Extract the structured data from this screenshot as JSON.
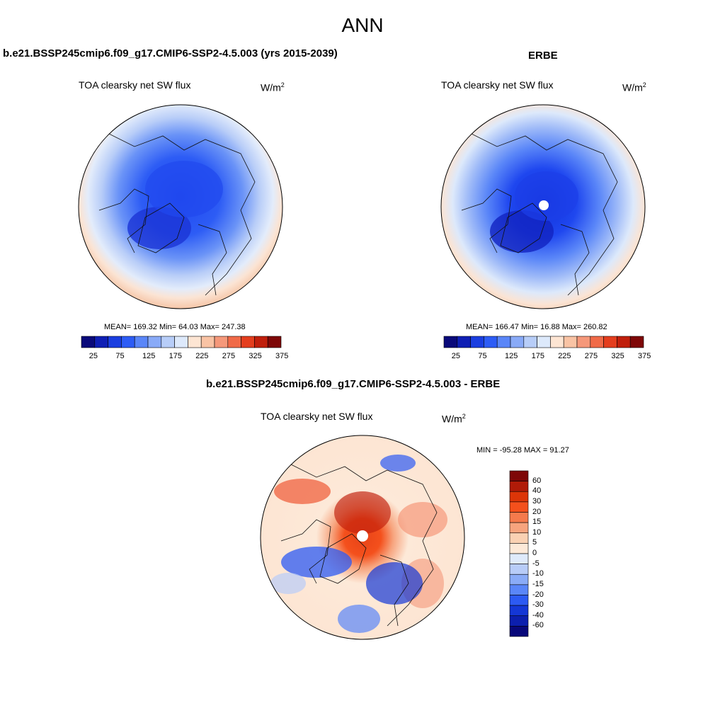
{
  "page": {
    "title": "ANN"
  },
  "panels": [
    {
      "id": "model",
      "title": "b.e21.BSSP245cmip6.f09_g17.CMIP6-SSP2-4.5.003 (yrs 2015-2039)",
      "variable": "TOA clearsky net SW flux",
      "units_base": "W/m",
      "units_exp": "2",
      "stats": "MEAN= 169.32  Min=  64.03  Max= 247.38"
    },
    {
      "id": "obs",
      "title": "ERBE",
      "variable": "TOA clearsky net SW flux",
      "units_base": "W/m",
      "units_exp": "2",
      "stats": "MEAN= 166.47  Min=  16.88  Max= 260.82"
    },
    {
      "id": "diff",
      "title": "b.e21.BSSP245cmip6.f09_g17.CMIP6-SSP2-4.5.003 - ERBE",
      "variable": "TOA clearsky net SW flux",
      "units_base": "W/m",
      "units_exp": "2",
      "stats": "MIN = -95.28 MAX =  91.27"
    }
  ],
  "colorbars": {
    "absolute": {
      "colors": [
        "#0a0a7a",
        "#0f1fb4",
        "#1a3ee0",
        "#2d5cf5",
        "#5a86f8",
        "#89aaf7",
        "#b7cdf8",
        "#dde9fb",
        "#fde5d3",
        "#f9c3a4",
        "#f5987a",
        "#f06a48",
        "#e43e1e",
        "#c01f0c",
        "#7e0707"
      ],
      "labels": [
        "25",
        "75",
        "125",
        "175",
        "225",
        "275",
        "325",
        "375"
      ]
    },
    "difference": {
      "colors": [
        "#7e0707",
        "#b01b08",
        "#dc3508",
        "#f4501c",
        "#f57a4c",
        "#f7a47e",
        "#fad1b3",
        "#fde9d8",
        "#dfeafb",
        "#b8ccf8",
        "#8aabf7",
        "#5a86f8",
        "#2c5af3",
        "#1437d6",
        "#0c1fae",
        "#08087a"
      ],
      "labels": [
        "60",
        "40",
        "30",
        "20",
        "15",
        "10",
        "5",
        "0",
        "-5",
        "-10",
        "-15",
        "-20",
        "-30",
        "-40",
        "-60"
      ]
    }
  }
}
